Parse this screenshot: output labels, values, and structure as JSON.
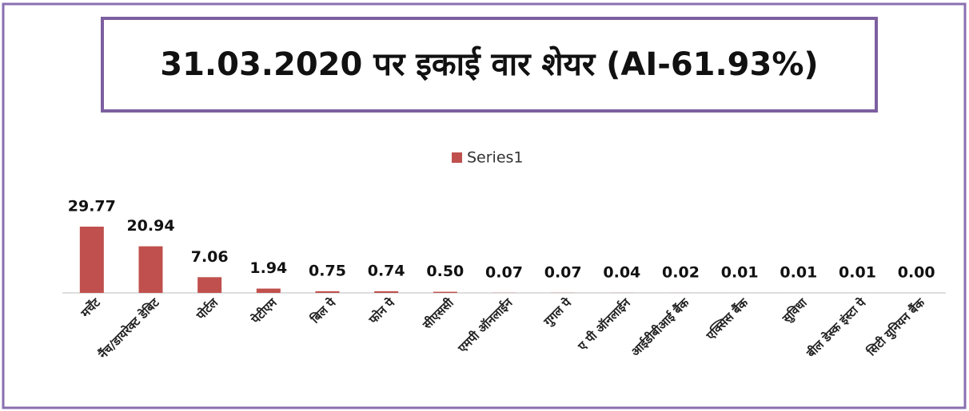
{
  "chart_data": {
    "type": "bar",
    "title": "31.03.2020 पर इकाई वार शेयर (AI-61.93%)",
    "categories": [
      "मर्चेंट",
      "नैंच/डायरेक्ट डेबिट",
      "पोर्टल",
      "पेटीएम",
      "बिल पे",
      "फोन पे",
      "सीएससी",
      "एमपी ऑनलाईन",
      "गुगल पे",
      "ए पी ऑनलाईन",
      "आईडीबीआई बैंक",
      "एक्सिस बैंक",
      "सुविधा",
      "बील डेस्क इंस्टा पे",
      "सिटी युनियन बैंक"
    ],
    "series": [
      {
        "name": "Series1",
        "color": "#c0504d",
        "values": [
          29.77,
          20.94,
          7.06,
          1.94,
          0.75,
          0.74,
          0.5,
          0.07,
          0.07,
          0.04,
          0.02,
          0.01,
          0.01,
          0.01,
          0
        ],
        "value_labels": [
          "29.77",
          "20.94",
          "7.06",
          "1.94",
          "0.75",
          "0.74",
          "0.50",
          "0.07",
          "0.07",
          "0.04",
          "0.02",
          "0.01",
          "0.01",
          "0.01",
          "0.00"
        ]
      }
    ],
    "legend": "top"
  }
}
